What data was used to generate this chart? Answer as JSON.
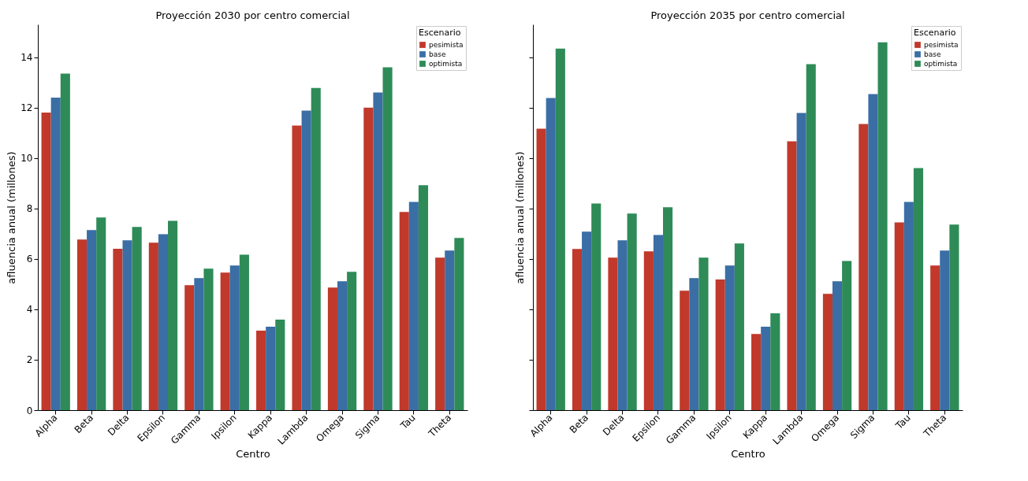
{
  "chart_data": [
    {
      "type": "bar",
      "title": "Proyección 2030 por centro comercial",
      "xlabel": "Centro",
      "ylabel": "afluencia anual (millones)",
      "legend_title": "Escenario",
      "legend": "top right",
      "grid": false,
      "categories": [
        "Alpha",
        "Beta",
        "Delta",
        "Epsilon",
        "Gamma",
        "Ipsilon",
        "Kappa",
        "Lambda",
        "Omega",
        "Sigma",
        "Tau",
        "Theta"
      ],
      "ylim": [
        0,
        15.3
      ],
      "yticks": [
        0,
        2,
        4,
        6,
        8,
        10,
        12,
        14
      ],
      "series": [
        {
          "name": "pesimista",
          "color": "#c0392b",
          "values": [
            11.8,
            6.77,
            6.4,
            6.64,
            4.96,
            5.46,
            3.15,
            11.29,
            4.86,
            12.0,
            7.86,
            6.05
          ]
        },
        {
          "name": "base",
          "color": "#3a6ea5",
          "values": [
            12.4,
            7.14,
            6.74,
            6.98,
            5.24,
            5.74,
            3.31,
            11.88,
            5.11,
            12.6,
            8.26,
            6.33
          ]
        },
        {
          "name": "optimista",
          "color": "#2e8b57",
          "values": [
            13.35,
            7.64,
            7.27,
            7.51,
            5.61,
            6.17,
            3.59,
            12.78,
            5.49,
            13.6,
            8.92,
            6.83
          ]
        }
      ]
    },
    {
      "type": "bar",
      "title": "Proyección 2035 por centro comercial",
      "xlabel": "Centro",
      "ylabel": "afluencia anual (millones)",
      "legend_title": "Escenario",
      "legend": "top right",
      "grid": false,
      "tick_labels": "x",
      "categories": [
        "Alpha",
        "Beta",
        "Delta",
        "Epsilon",
        "Gamma",
        "Ipsilon",
        "Kappa",
        "Lambda",
        "Omega",
        "Sigma",
        "Tau",
        "Theta"
      ],
      "ylim": [
        0,
        15.3
      ],
      "yticks": [
        0,
        2,
        4,
        6,
        8,
        10,
        12,
        14
      ],
      "series": [
        {
          "name": "pesimista",
          "color": "#c0392b",
          "values": [
            11.16,
            6.39,
            6.05,
            6.3,
            4.74,
            5.18,
            3.02,
            10.66,
            4.61,
            11.35,
            7.45,
            5.74
          ]
        },
        {
          "name": "base",
          "color": "#3a6ea5",
          "values": [
            12.38,
            7.08,
            6.74,
            6.95,
            5.24,
            5.74,
            3.31,
            11.79,
            5.11,
            12.54,
            8.26,
            6.33
          ]
        },
        {
          "name": "optimista",
          "color": "#2e8b57",
          "values": [
            14.34,
            8.2,
            7.8,
            8.05,
            6.05,
            6.61,
            3.84,
            13.72,
            5.92,
            14.59,
            9.6,
            7.36
          ]
        }
      ]
    }
  ]
}
